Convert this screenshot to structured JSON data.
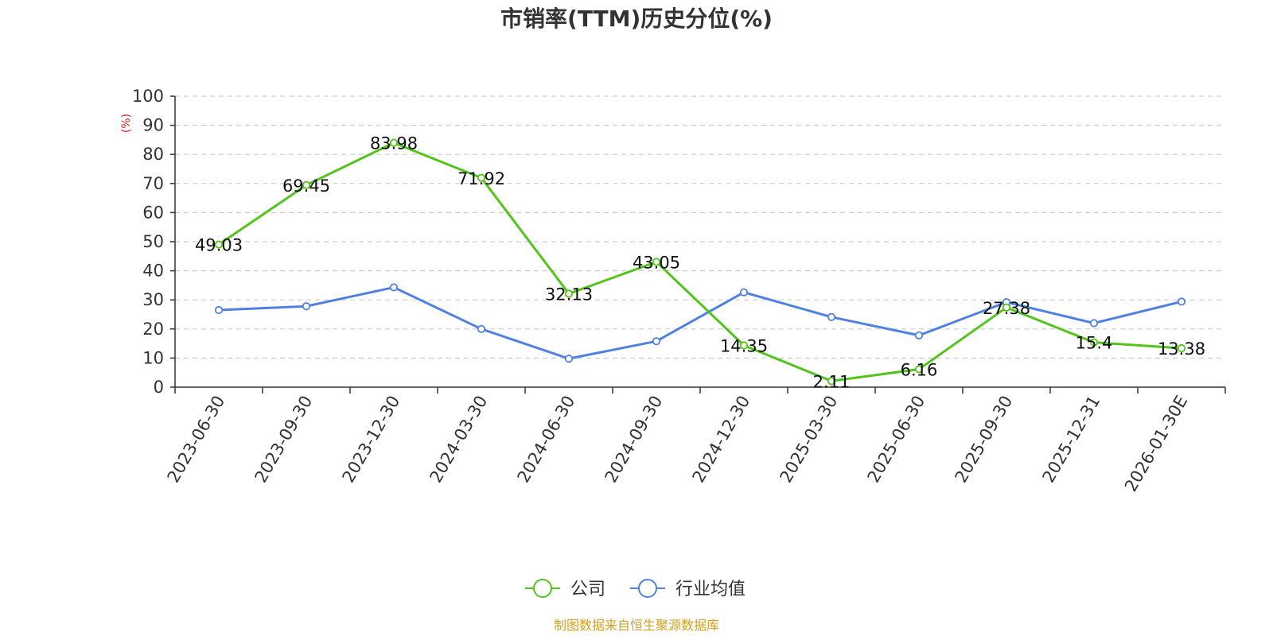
{
  "chart_data": {
    "type": "line",
    "title": "市销率(TTM)历史分位(%)",
    "ylabel": "(%)",
    "ylim": [
      0,
      100
    ],
    "yticks": [
      "0",
      "10",
      "20",
      "30",
      "40",
      "50",
      "60",
      "70",
      "80",
      "90",
      "100"
    ],
    "grid": true,
    "categories": [
      "2023-06-30",
      "2023-09-30",
      "2023-12-30",
      "2024-03-30",
      "2024-06-30",
      "2024-09-30",
      "2024-12-30",
      "2025-03-30",
      "2025-06-30",
      "2025-09-30",
      "2025-12-31",
      "2026-01-30E"
    ],
    "series": [
      {
        "name": "公司",
        "color": "#52c41a",
        "values": [
          49.03,
          69.45,
          83.98,
          71.92,
          32.13,
          43.05,
          14.35,
          2.11,
          6.16,
          27.38,
          15.4,
          13.38
        ],
        "labels": [
          "49.03",
          "69.45",
          "83.98",
          "71.92",
          "32.13",
          "43.05",
          "14.35",
          "2.11",
          "6.16",
          "27.38",
          "15.4",
          "13.38"
        ]
      },
      {
        "name": "行业均值",
        "color": "#4f81e0",
        "values": [
          26.5,
          27.8,
          34.3,
          20.0,
          9.8,
          15.8,
          32.6,
          24.1,
          17.8,
          29.2,
          22.0,
          29.4
        ]
      }
    ],
    "legend_position": "bottom-center"
  },
  "footer": {
    "source": "制图数据来自恒生聚源数据库"
  }
}
